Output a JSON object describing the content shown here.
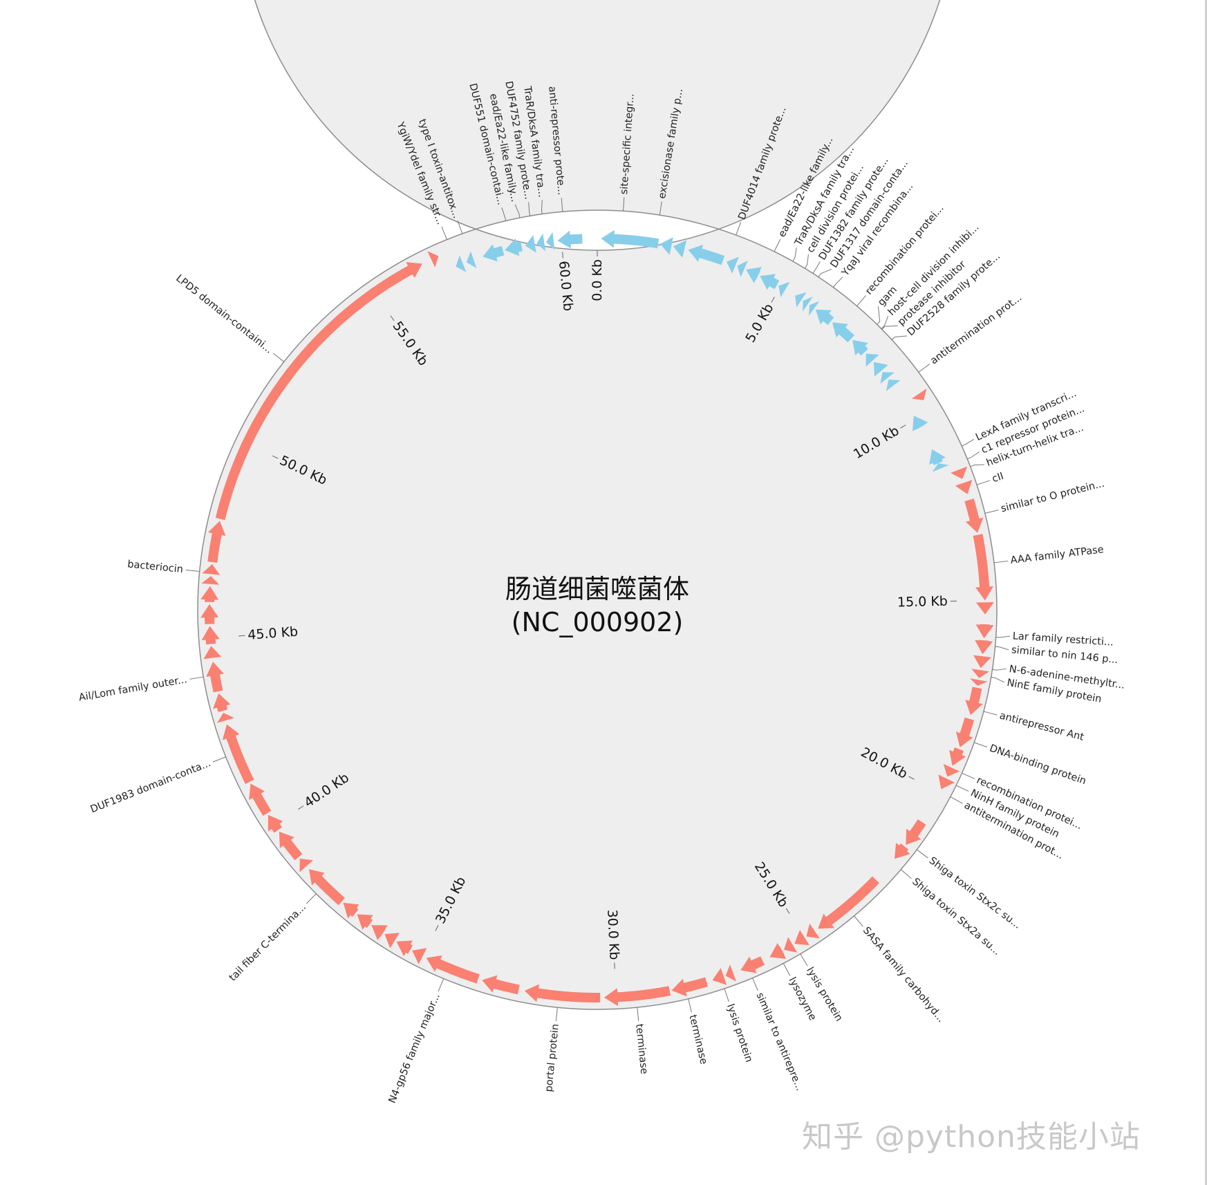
{
  "title": {
    "line1": "肠道细菌噬菌体",
    "line2": "(NC_000902)"
  },
  "watermark": "知乎 @python技能小站",
  "colors": {
    "plus_strand": "#fa8072",
    "minus_strand": "#87ceeb",
    "track_fill": "#eeeeee",
    "track_stroke": "#8c8c8c"
  },
  "axis_range_kb": [
    0,
    60.942
  ],
  "scale_ticks": [
    {
      "value": 0,
      "label": "0.0 Kb"
    },
    {
      "value": 5,
      "label": "5.0 Kb"
    },
    {
      "value": 10,
      "label": "10.0 Kb"
    },
    {
      "value": 15,
      "label": "15.0 Kb"
    },
    {
      "value": 20,
      "label": "20.0 Kb"
    },
    {
      "value": 25,
      "label": "25.0 Kb"
    },
    {
      "value": 30,
      "label": "30.0 Kb"
    },
    {
      "value": 35,
      "label": "35.0 Kb"
    },
    {
      "value": 40,
      "label": "40.0 Kb"
    },
    {
      "value": 45,
      "label": "45.0 Kb"
    },
    {
      "value": 50,
      "label": "50.0 Kb"
    },
    {
      "value": 55,
      "label": "55.0 Kb"
    },
    {
      "value": 60,
      "label": "60.0 Kb"
    }
  ],
  "features_kb": [
    [
      57.15,
      57.35,
      -1
    ],
    [
      57.45,
      57.65,
      -1
    ],
    [
      57.9,
      58.45,
      -1
    ],
    [
      58.5,
      58.95,
      -1
    ],
    [
      59.05,
      59.3,
      -1
    ],
    [
      59.35,
      59.55,
      -1
    ],
    [
      59.6,
      59.8,
      -1
    ],
    [
      59.9,
      60.55,
      -1
    ],
    [
      0.1,
      1.6,
      -1
    ],
    [
      1.65,
      1.95,
      -1
    ],
    [
      2.0,
      2.3,
      -1
    ],
    [
      2.4,
      3.35,
      -1
    ],
    [
      3.45,
      3.7,
      -1
    ],
    [
      3.75,
      3.95,
      -1
    ],
    [
      4.0,
      4.35,
      -1
    ],
    [
      4.4,
      4.9,
      -1
    ],
    [
      4.95,
      5.15,
      -1
    ],
    [
      5.45,
      5.65,
      -1
    ],
    [
      5.7,
      5.85,
      -1
    ],
    [
      5.9,
      6.05,
      -1
    ],
    [
      6.1,
      6.6,
      -1
    ],
    [
      6.65,
      7.3,
      -1
    ],
    [
      7.35,
      7.8,
      -1
    ],
    [
      7.85,
      8.1,
      -1
    ],
    [
      8.15,
      8.45,
      -1
    ],
    [
      8.5,
      8.7,
      -1
    ],
    [
      8.75,
      8.95,
      -1
    ],
    [
      9.9,
      10.25,
      -1
    ],
    [
      10.9,
      11.3,
      -1
    ],
    [
      11.3,
      11.45,
      -1
    ],
    [
      9.5,
      9.7,
      1
    ],
    [
      11.65,
      11.9,
      1
    ],
    [
      12.0,
      12.3,
      1
    ],
    [
      12.45,
      13.3,
      1
    ],
    [
      13.35,
      15.0,
      1
    ],
    [
      15.05,
      15.35,
      1
    ],
    [
      15.6,
      15.95,
      1
    ],
    [
      16.0,
      16.35,
      1
    ],
    [
      16.4,
      16.7,
      1
    ],
    [
      16.75,
      16.95,
      1
    ],
    [
      17.0,
      17.15,
      1
    ],
    [
      17.2,
      17.9,
      1
    ],
    [
      18.0,
      18.75,
      1
    ],
    [
      18.8,
      19.25,
      1
    ],
    [
      19.3,
      19.55,
      1
    ],
    [
      19.6,
      19.9,
      1
    ],
    [
      20.85,
      21.55,
      1
    ],
    [
      21.6,
      22.0,
      1
    ],
    [
      22.7,
      24.6,
      1
    ],
    [
      24.7,
      24.95,
      1
    ],
    [
      25.0,
      25.3,
      1
    ],
    [
      25.35,
      25.6,
      1
    ],
    [
      25.65,
      26.0,
      1
    ],
    [
      26.2,
      26.8,
      1
    ],
    [
      27.0,
      27.2,
      1
    ],
    [
      27.25,
      27.55,
      1
    ],
    [
      27.7,
      28.6,
      1
    ],
    [
      28.65,
      30.3,
      1
    ],
    [
      30.4,
      32.3,
      1
    ],
    [
      32.45,
      33.4,
      1
    ],
    [
      33.5,
      34.9,
      1
    ],
    [
      35.0,
      35.3,
      1
    ],
    [
      35.35,
      35.75,
      1
    ],
    [
      35.8,
      36.1,
      1
    ],
    [
      36.15,
      36.5,
      1
    ],
    [
      36.55,
      36.95,
      1
    ],
    [
      37.0,
      37.4,
      1
    ],
    [
      37.45,
      38.6,
      1
    ],
    [
      38.7,
      38.95,
      1
    ],
    [
      39.0,
      39.8,
      1
    ],
    [
      39.85,
      40.3,
      1
    ],
    [
      40.35,
      41.2,
      1
    ],
    [
      41.25,
      42.8,
      1
    ],
    [
      42.9,
      43.1,
      1
    ],
    [
      43.15,
      43.6,
      1
    ],
    [
      43.65,
      44.4,
      1
    ],
    [
      44.5,
      44.8,
      1
    ],
    [
      44.85,
      45.3,
      1
    ],
    [
      45.35,
      45.85,
      1
    ],
    [
      45.9,
      46.3,
      1
    ],
    [
      46.35,
      46.55,
      1
    ],
    [
      46.6,
      46.85,
      1
    ],
    [
      46.9,
      47.95,
      1
    ],
    [
      48.0,
      56.4,
      1
    ],
    [
      56.65,
      56.85,
      1
    ]
  ],
  "gene_labels": [
    {
      "pos": 57.2,
      "text": "YgiW/YdeI family str..."
    },
    {
      "pos": 57.6,
      "text": "type I toxin-antitox..."
    },
    {
      "pos": 58.7,
      "text": "DUF551 domain-contai..."
    },
    {
      "pos": 59.05,
      "text": "ead/Ea22-like family..."
    },
    {
      "pos": 59.3,
      "text": "DUF4752 family prote..."
    },
    {
      "pos": 59.6,
      "text": "TraR/DksA family tra..."
    },
    {
      "pos": 60.1,
      "text": "anti-repressor prote..."
    },
    {
      "pos": 0.63,
      "text": "site-specific integr..."
    },
    {
      "pos": 1.52,
      "text": "excisionase family p..."
    },
    {
      "pos": 3.44,
      "text": "DUF4014 family prote..."
    },
    {
      "pos": 4.45,
      "text": "ead/Ea22-like family..."
    },
    {
      "pos": 4.96,
      "text": "TraR/DksA family tra..."
    },
    {
      "pos": 5.3,
      "text": "cell division protei..."
    },
    {
      "pos": 5.53,
      "text": "DUF1382 family prote..."
    },
    {
      "pos": 5.69,
      "text": "DUF1317 domain-conta..."
    },
    {
      "pos": 6.13,
      "text": "YqaJ viral recombina..."
    },
    {
      "pos": 6.86,
      "text": "recombination protei..."
    },
    {
      "pos": 7.52,
      "text": "gam"
    },
    {
      "pos": 7.67,
      "text": "host-cell division inhibi..."
    },
    {
      "pos": 7.69,
      "text": "protease inhibitor"
    },
    {
      "pos": 8.04,
      "text": "DUF2528 family prote..."
    },
    {
      "pos": 9.06,
      "text": "antitermination prot..."
    },
    {
      "pos": 11.14,
      "text": "LexA family transcri..."
    },
    {
      "pos": 11.48,
      "text": "c1 repressor protein..."
    },
    {
      "pos": 11.68,
      "text": "helix-turn-helix tra..."
    },
    {
      "pos": 12.15,
      "text": "cII"
    },
    {
      "pos": 12.87,
      "text": "similar to O protein..."
    },
    {
      "pos": 14.09,
      "text": "AAA family ATPase"
    },
    {
      "pos": 15.9,
      "text": "Lar family restricti..."
    },
    {
      "pos": 16.13,
      "text": "similar to nin 146 p..."
    },
    {
      "pos": 16.69,
      "text": "N-6-adenine-methyltr..."
    },
    {
      "pos": 16.88,
      "text": "NinE family protein"
    },
    {
      "pos": 17.73,
      "text": "antirepressor Ant"
    },
    {
      "pos": 18.52,
      "text": "DNA-binding protein"
    },
    {
      "pos": 19.32,
      "text": "recombination protei..."
    },
    {
      "pos": 19.65,
      "text": "NinH family protein"
    },
    {
      "pos": 19.96,
      "text": "antitermination prot..."
    },
    {
      "pos": 21.48,
      "text": "Shiga toxin Stx2c su..."
    },
    {
      "pos": 22.1,
      "text": "Shiga toxin Stx2a su..."
    },
    {
      "pos": 23.7,
      "text": "SASA family carbohyd..."
    },
    {
      "pos": 25.3,
      "text": "lysis protein"
    },
    {
      "pos": 25.77,
      "text": "lysozyme"
    },
    {
      "pos": 26.6,
      "text": "similar to antirepre..."
    },
    {
      "pos": 27.33,
      "text": "lysis protein"
    },
    {
      "pos": 28.24,
      "text": "terminase"
    },
    {
      "pos": 29.5,
      "text": "terminase"
    },
    {
      "pos": 31.44,
      "text": "portal protein"
    },
    {
      "pos": 34.3,
      "text": "N4-gp56 family major..."
    },
    {
      "pos": 38.04,
      "text": "tail fiber C-termina..."
    },
    {
      "pos": 42.05,
      "text": "DUF1983 domain-conta..."
    },
    {
      "pos": 44.07,
      "text": "Ail/Lom family outer..."
    },
    {
      "pos": 46.64,
      "text": "bacteriocin"
    },
    {
      "pos": 52.2,
      "text": "LPD5 domain-containi..."
    }
  ]
}
